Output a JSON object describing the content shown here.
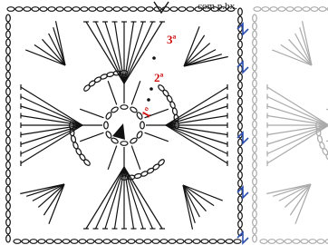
{
  "caption": "com p.bx.",
  "rounds": [
    {
      "label": "1º"
    },
    {
      "label": "2ª"
    },
    {
      "label": "3ª"
    }
  ]
}
